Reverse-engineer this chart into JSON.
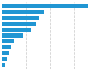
{
  "values": [
    1260000,
    610000,
    540000,
    490000,
    420000,
    300000,
    175000,
    125000,
    95000,
    75000,
    45000
  ],
  "bar_color": "#2196d3",
  "background_color": "#ffffff",
  "grid_color": "#c8c8c8",
  "xlim": [
    0,
    1400000
  ],
  "grid_lines": [
    350000,
    700000,
    1050000,
    1400000
  ]
}
